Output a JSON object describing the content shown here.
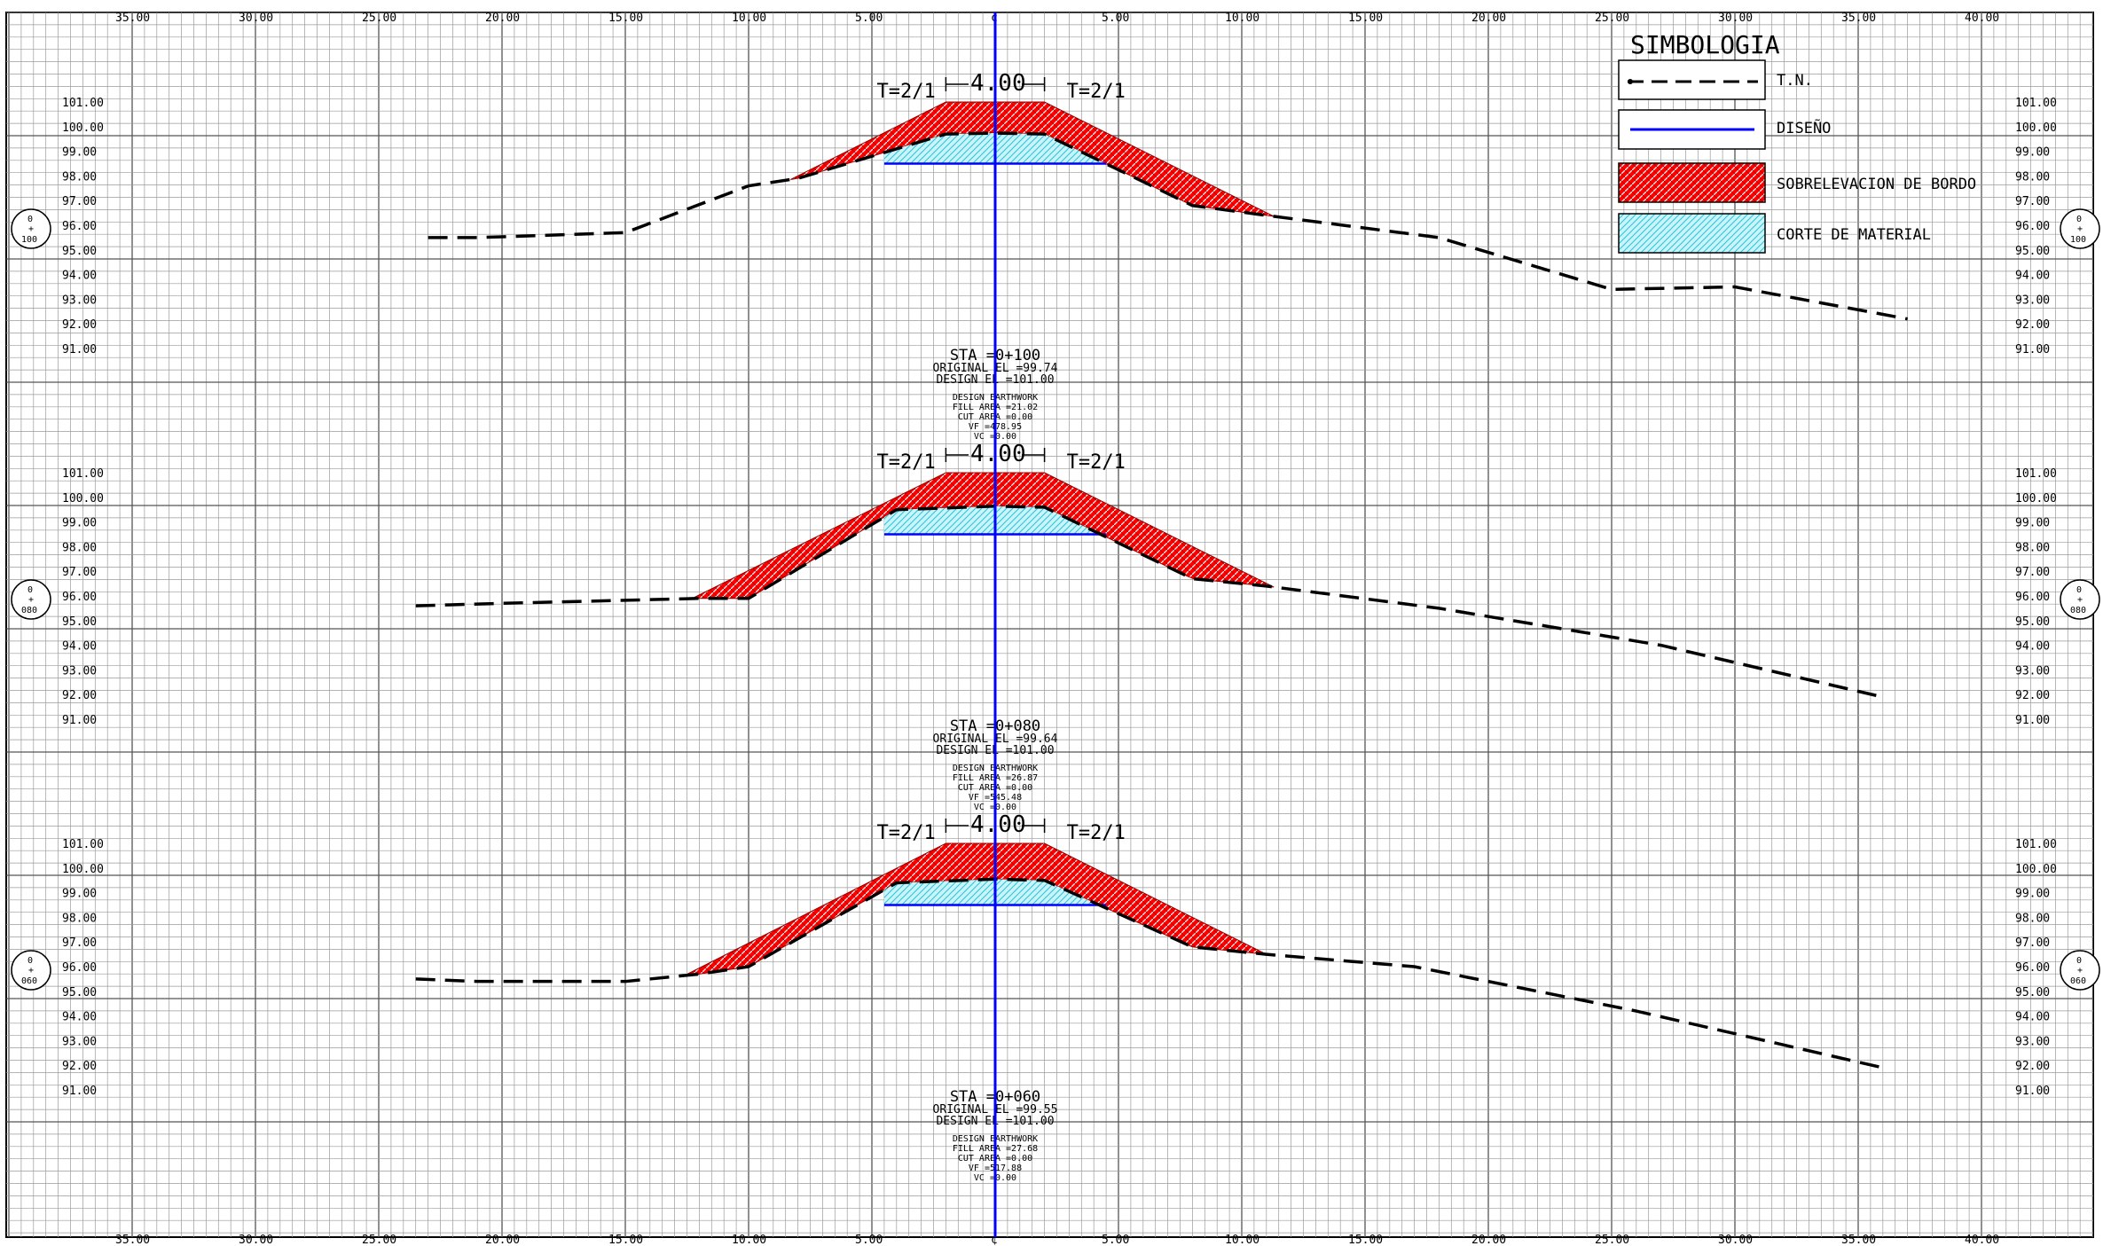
{
  "x_axis": {
    "left_labels": [
      "35.00",
      "30.00",
      "25.00",
      "20.00",
      "15.00",
      "10.00",
      "5.00"
    ],
    "center_label": "¢",
    "right_labels": [
      "5.00",
      "10.00",
      "15.00",
      "20.00",
      "25.00",
      "30.00",
      "35.00",
      "40.00"
    ]
  },
  "legend": {
    "title": "SIMBOLOGIA",
    "items": [
      {
        "label": "T.N.",
        "symbol": "dashed-line",
        "color": "#000000"
      },
      {
        "label": "DISEÑO",
        "symbol": "solid-line",
        "color": "#0000ff"
      },
      {
        "label": "SOBRELEVACION DE BORDO",
        "symbol": "fill-hatch",
        "color": "#ff0000"
      },
      {
        "label": "CORTE DE MATERIAL",
        "symbol": "fill-hatch",
        "color": "#5fd7e8"
      }
    ]
  },
  "colors": {
    "grid": "#9a9a9a",
    "grid_major": "#555555",
    "fill_section": "#ff0000",
    "cut_section": "#5fd7e8",
    "design_line": "#0000ff",
    "ground_line": "#000000"
  },
  "sections": [
    {
      "station_marker": {
        "top": "0",
        "mid": "+",
        "bottom": "100"
      },
      "elevation_labels": [
        "101.00",
        "100.00",
        "99.00",
        "98.00",
        "97.00",
        "96.00",
        "95.00",
        "94.00",
        "93.00",
        "92.00",
        "91.00"
      ],
      "slope_left": "T=2/1",
      "slope_right": "T=2/1",
      "crown_width": "4.00",
      "data_lines": [
        "STA =0+100",
        "ORIGINAL EL =99.74",
        "DESIGN EL =101.00"
      ],
      "earthwork_lines": [
        "DESIGN EARTHWORK",
        "FILL AREA =21.02",
        "CUT AREA =0.00",
        "VF =478.95",
        "VC =0.00"
      ],
      "ground_profile": [
        [
          -23,
          95.5
        ],
        [
          -21,
          95.5
        ],
        [
          -15,
          95.7
        ],
        [
          -10,
          97.6
        ],
        [
          -8,
          97.9
        ],
        [
          -2,
          99.7
        ],
        [
          0,
          99.74
        ],
        [
          2,
          99.7
        ],
        [
          8,
          96.8
        ],
        [
          11,
          96.4
        ],
        [
          18,
          95.5
        ],
        [
          25,
          93.4
        ],
        [
          30,
          93.5
        ],
        [
          37,
          92.2
        ]
      ],
      "embankment_toes": {
        "left": -8.3,
        "right": 11.3
      }
    },
    {
      "station_marker": {
        "top": "0",
        "mid": "+",
        "bottom": "080"
      },
      "elevation_labels": [
        "101.00",
        "100.00",
        "99.00",
        "98.00",
        "97.00",
        "96.00",
        "95.00",
        "94.00",
        "93.00",
        "92.00",
        "91.00"
      ],
      "slope_left": "T=2/1",
      "slope_right": "T=2/1",
      "crown_width": "4.00",
      "data_lines": [
        "STA =0+080",
        "ORIGINAL EL =99.64",
        "DESIGN EL =101.00"
      ],
      "earthwork_lines": [
        "DESIGN EARTHWORK",
        "FILL AREA =26.87",
        "CUT AREA =0.00",
        "VF =545.48",
        "VC =0.00"
      ],
      "ground_profile": [
        [
          -23.5,
          95.6
        ],
        [
          -20,
          95.7
        ],
        [
          -12,
          95.9
        ],
        [
          -10,
          95.9
        ],
        [
          -4,
          99.5
        ],
        [
          0,
          99.64
        ],
        [
          2,
          99.6
        ],
        [
          8,
          96.7
        ],
        [
          11,
          96.4
        ],
        [
          18,
          95.5
        ],
        [
          27,
          94.0
        ],
        [
          36,
          91.9
        ]
      ],
      "embankment_toes": {
        "left": -12.3,
        "right": 11.3
      }
    },
    {
      "station_marker": {
        "top": "0",
        "mid": "+",
        "bottom": "060"
      },
      "elevation_labels": [
        "101.00",
        "100.00",
        "99.00",
        "98.00",
        "97.00",
        "96.00",
        "95.00",
        "94.00",
        "93.00",
        "92.00",
        "91.00"
      ],
      "slope_left": "T=2/1",
      "slope_right": "T=2/1",
      "crown_width": "4.00",
      "data_lines": [
        "STA =0+060",
        "ORIGINAL EL =99.55",
        "DESIGN EL =101.00"
      ],
      "earthwork_lines": [
        "DESIGN EARTHWORK",
        "FILL AREA =27.68",
        "CUT AREA =0.00",
        "VF =517.88",
        "VC =0.00"
      ],
      "ground_profile": [
        [
          -23.5,
          95.5
        ],
        [
          -21,
          95.4
        ],
        [
          -15,
          95.4
        ],
        [
          -12,
          95.7
        ],
        [
          -10,
          96.0
        ],
        [
          -4,
          99.4
        ],
        [
          0,
          99.55
        ],
        [
          2,
          99.5
        ],
        [
          8,
          96.8
        ],
        [
          11,
          96.5
        ],
        [
          17,
          96.0
        ],
        [
          26,
          94.2
        ],
        [
          36,
          91.9
        ]
      ],
      "embankment_toes": {
        "left": -12.6,
        "right": 11
      }
    }
  ]
}
